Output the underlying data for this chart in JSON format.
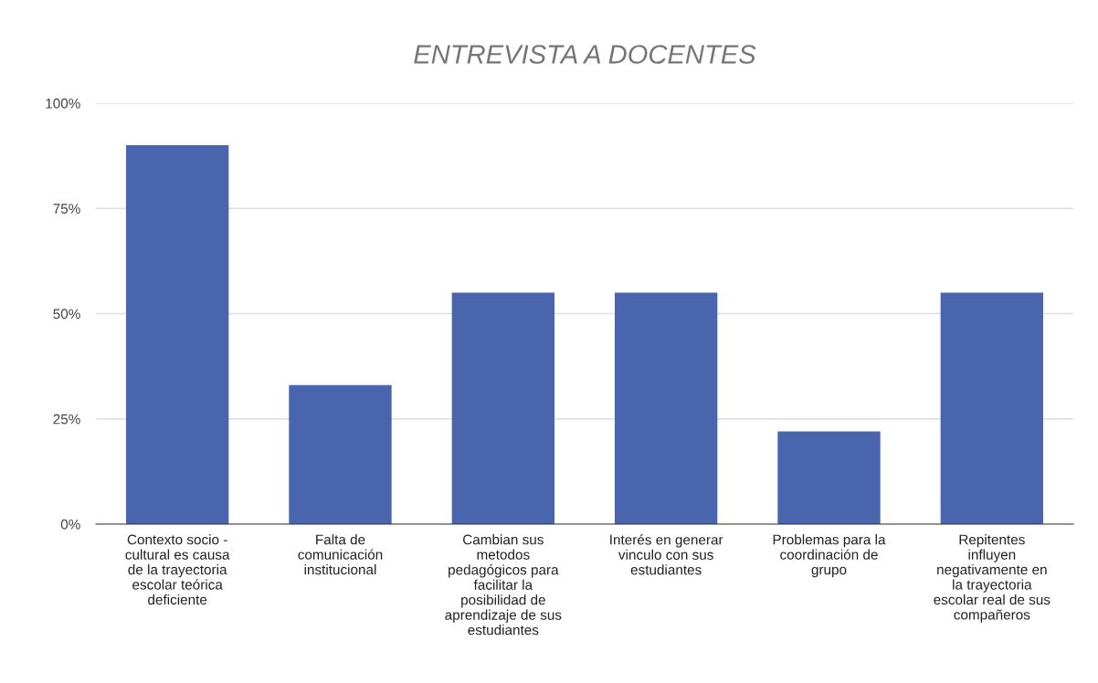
{
  "chart_data": {
    "type": "bar",
    "title": "ENTREVISTA A DOCENTES",
    "categories": [
      "Contexto socio -\ncultural es causa\nde la trayectoria\nescolar teórica\ndeficiente",
      "Falta de\ncomunicación\ninstitucional",
      "Cambian sus\nmetodos\npedagógicos para\nfacilitar la\nposibilidad de\naprendizaje de sus\nestudiantes",
      "Interés en generar\nvinculo con sus\nestudiantes",
      "Problemas para la\ncoordinación de\ngrupo",
      "Repitentes\ninfluyen\nnegativamente en\nla trayectoria\nescolar real de sus\ncompañeros"
    ],
    "values": [
      90,
      33,
      55,
      55,
      22,
      55
    ],
    "color": "#4865ad",
    "ylim": [
      0,
      100
    ],
    "yticks": [
      {
        "value": 0,
        "label": "0%"
      },
      {
        "value": 25,
        "label": "25%"
      },
      {
        "value": 50,
        "label": "50%"
      },
      {
        "value": 75,
        "label": "75%"
      },
      {
        "value": 100,
        "label": "100%"
      }
    ],
    "grid": "y",
    "legend": false
  }
}
